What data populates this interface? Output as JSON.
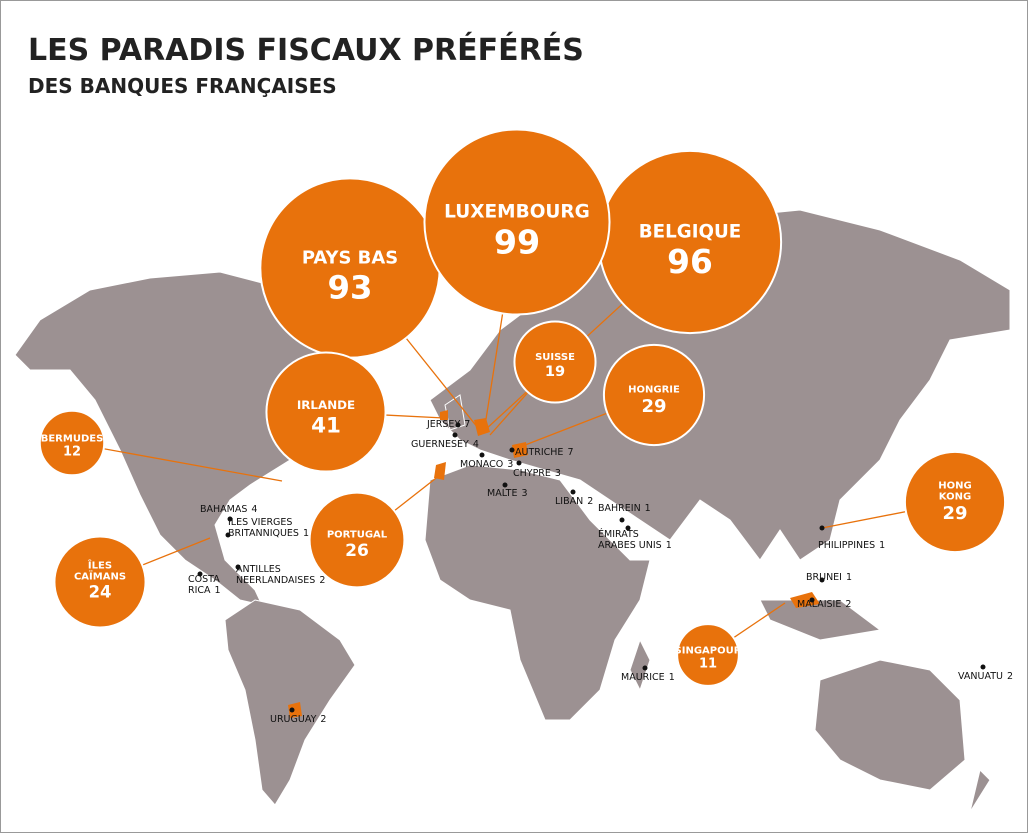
{
  "title": "LES PARADIS FISCAUX PRÉFÉRÉS",
  "subtitle": "DES BANQUES FRANÇAISES",
  "bubbles": [
    {
      "lines": [
        "PAYS BAS"
      ],
      "value": 93
    },
    {
      "lines": [
        "BELGIQUE"
      ],
      "value": 96
    },
    {
      "lines": [
        "LUXEMBOURG"
      ],
      "value": 99
    },
    {
      "lines": [
        "IRLANDE"
      ],
      "value": 41
    },
    {
      "lines": [
        "SUISSE"
      ],
      "value": 19
    },
    {
      "lines": [
        "HONGRIE"
      ],
      "value": 29
    },
    {
      "lines": [
        "BERMUDES"
      ],
      "value": 12
    },
    {
      "lines": [
        "HONG",
        "KONG"
      ],
      "value": 29
    },
    {
      "lines": [
        "PORTUGAL"
      ],
      "value": 26
    },
    {
      "lines": [
        "ÎLES",
        "CAÏMANS"
      ],
      "value": 24
    },
    {
      "lines": [
        "SINGAPOUR"
      ],
      "value": 11
    }
  ],
  "places": [
    {
      "lines": [
        "JERSEY"
      ],
      "value": 7
    },
    {
      "lines": [
        "GUERNESEY"
      ],
      "value": 4
    },
    {
      "lines": [
        "MONACO"
      ],
      "value": 3
    },
    {
      "lines": [
        "AUTRICHE"
      ],
      "value": 7
    },
    {
      "lines": [
        "CHYPRE"
      ],
      "value": 3
    },
    {
      "lines": [
        "MALTE"
      ],
      "value": 3
    },
    {
      "lines": [
        "LIBAN"
      ],
      "value": 2
    },
    {
      "lines": [
        "BAHREIN"
      ],
      "value": 1
    },
    {
      "lines": [
        "ÉMIRATS",
        "ARABES UNIS"
      ],
      "value": 1
    },
    {
      "lines": [
        "PHILIPPINES"
      ],
      "value": 1
    },
    {
      "lines": [
        "BRUNEI"
      ],
      "value": 1
    },
    {
      "lines": [
        "MALAISIE"
      ],
      "value": 2
    },
    {
      "lines": [
        "MAURICE"
      ],
      "value": 1
    },
    {
      "lines": [
        "VANUATU"
      ],
      "value": 2
    },
    {
      "lines": [
        "URUGUAY"
      ],
      "value": 2
    },
    {
      "lines": [
        "BAHAMAS"
      ],
      "value": 4
    },
    {
      "lines": [
        "ILES VIERGES",
        "BRITANNIQUES"
      ],
      "value": 1
    },
    {
      "lines": [
        "ANTILLES",
        "NEERLANDAISES"
      ],
      "value": 2
    },
    {
      "lines": [
        "COSTA",
        "RICA"
      ],
      "value": 1
    }
  ]
}
